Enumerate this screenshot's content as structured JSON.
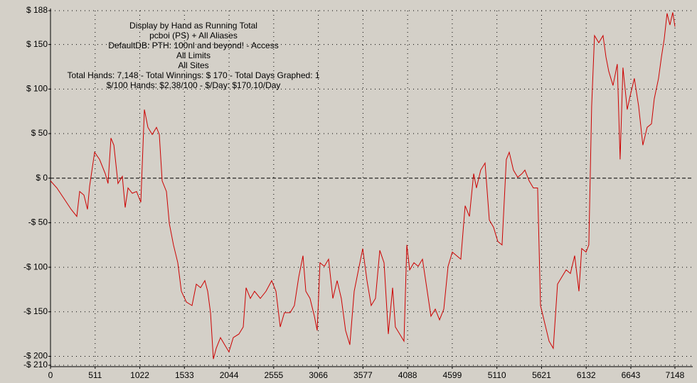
{
  "chart_data": {
    "type": "line",
    "annotations": [
      "Display by Hand as Running Total",
      "pcboi (PS) + All Aliases",
      "DefaultDB: PTH: 100nl and beyond! - Access",
      "All Limits",
      "All Sites",
      "Total Hands: 7,148 - Total Winnings: $ 170 - Total Days Graphed: 1",
      "$/100 Hands: $2.38/100 - $/Day: $170.10/Day"
    ],
    "x": [
      0,
      73,
      155,
      236,
      301,
      334,
      383,
      423,
      448,
      505,
      562,
      627,
      659,
      692,
      725,
      773,
      822,
      855,
      887,
      936,
      985,
      1034,
      1075,
      1115,
      1164,
      1213,
      1246,
      1278,
      1327,
      1360,
      1408,
      1457,
      1498,
      1555,
      1620,
      1669,
      1718,
      1767,
      1799,
      1832,
      1864,
      1897,
      1946,
      1994,
      2043,
      2092,
      2157,
      2206,
      2239,
      2288,
      2336,
      2402,
      2467,
      2532,
      2581,
      2630,
      2678,
      2744,
      2792,
      2841,
      2890,
      2923,
      2971,
      3020,
      3053,
      3085,
      3134,
      3183,
      3232,
      3281,
      3329,
      3378,
      3427,
      3476,
      3525,
      3574,
      3623,
      3671,
      3720,
      3769,
      3818,
      3867,
      3916,
      3948,
      3997,
      4046,
      4079,
      4111,
      4160,
      4209,
      4258,
      4307,
      4355,
      4404,
      4453,
      4502,
      4551,
      4600,
      4648,
      4697,
      4746,
      4795,
      4844,
      4876,
      4925,
      4974,
      5023,
      5071,
      5120,
      5169,
      5218,
      5251,
      5299,
      5348,
      5397,
      5430,
      5479,
      5527,
      5576,
      5609,
      5658,
      5707,
      5755,
      5804,
      5853,
      5902,
      5951,
      6000,
      6049,
      6081,
      6130,
      6162,
      6195,
      6227,
      6276,
      6325,
      6358,
      6390,
      6439,
      6488,
      6520,
      6553,
      6602,
      6634,
      6683,
      6732,
      6781,
      6830,
      6879,
      6911,
      6960,
      6993,
      7025,
      7058,
      7090,
      7123,
      7148
    ],
    "series": [
      {
        "color": "#cc0000",
        "values": [
          -3,
          -11,
          -23,
          -35,
          -43,
          -15,
          -19,
          -35,
          -9,
          29,
          21,
          5,
          -6,
          45,
          37,
          -6,
          2,
          -33,
          -11,
          -17,
          -15,
          -27,
          77,
          57,
          49,
          57,
          49,
          -3,
          -15,
          -51,
          -75,
          -95,
          -127,
          -139,
          -143,
          -119,
          -123,
          -115,
          -127,
          -151,
          -203,
          -191,
          -179,
          -187,
          -195,
          -179,
          -175,
          -167,
          -123,
          -135,
          -127,
          -135,
          -127,
          -115,
          -127,
          -167,
          -151,
          -151,
          -143,
          -111,
          -87,
          -127,
          -135,
          -155,
          -171,
          -95,
          -99,
          -91,
          -135,
          -115,
          -135,
          -171,
          -187,
          -127,
          -103,
          -79,
          -115,
          -143,
          -135,
          -81,
          -95,
          -175,
          -123,
          -167,
          -175,
          -183,
          -75,
          -103,
          -95,
          -99,
          -91,
          -123,
          -155,
          -147,
          -159,
          -147,
          -99,
          -83,
          -87,
          -91,
          -31,
          -43,
          5,
          -11,
          9,
          17,
          -47,
          -55,
          -71,
          -75,
          21,
          29,
          9,
          1,
          5,
          9,
          -3,
          -11,
          -11,
          -143,
          -163,
          -183,
          -191,
          -119,
          -111,
          -103,
          -107,
          -87,
          -127,
          -79,
          -83,
          -75,
          81,
          160,
          152,
          160,
          136,
          120,
          104,
          128,
          21,
          124,
          77,
          92,
          112,
          81,
          37,
          57,
          61,
          89,
          112,
          136,
          156,
          185,
          172,
          186,
          170
        ]
      }
    ],
    "xlim": [
      0,
      7148
    ],
    "xticks": [
      0,
      511,
      1022,
      1533,
      2044,
      2555,
      3066,
      3577,
      4088,
      4599,
      5110,
      5621,
      6132,
      6643,
      7148
    ],
    "ylim": [
      -210,
      188
    ],
    "yticks": [
      {
        "value": 188,
        "label": "$ 188"
      },
      {
        "value": 150,
        "label": "$ 150"
      },
      {
        "value": 100,
        "label": "$ 100"
      },
      {
        "value": 50,
        "label": "$ 50"
      },
      {
        "value": 0,
        "label": "$ 0"
      },
      {
        "value": -50,
        "label": "-$ 50"
      },
      {
        "value": -100,
        "label": "-$ 100"
      },
      {
        "value": -150,
        "label": "-$ 150"
      },
      {
        "value": -200,
        "label": "-$ 200"
      },
      {
        "value": -210,
        "label": "-$ 210"
      }
    ],
    "grid": true
  }
}
